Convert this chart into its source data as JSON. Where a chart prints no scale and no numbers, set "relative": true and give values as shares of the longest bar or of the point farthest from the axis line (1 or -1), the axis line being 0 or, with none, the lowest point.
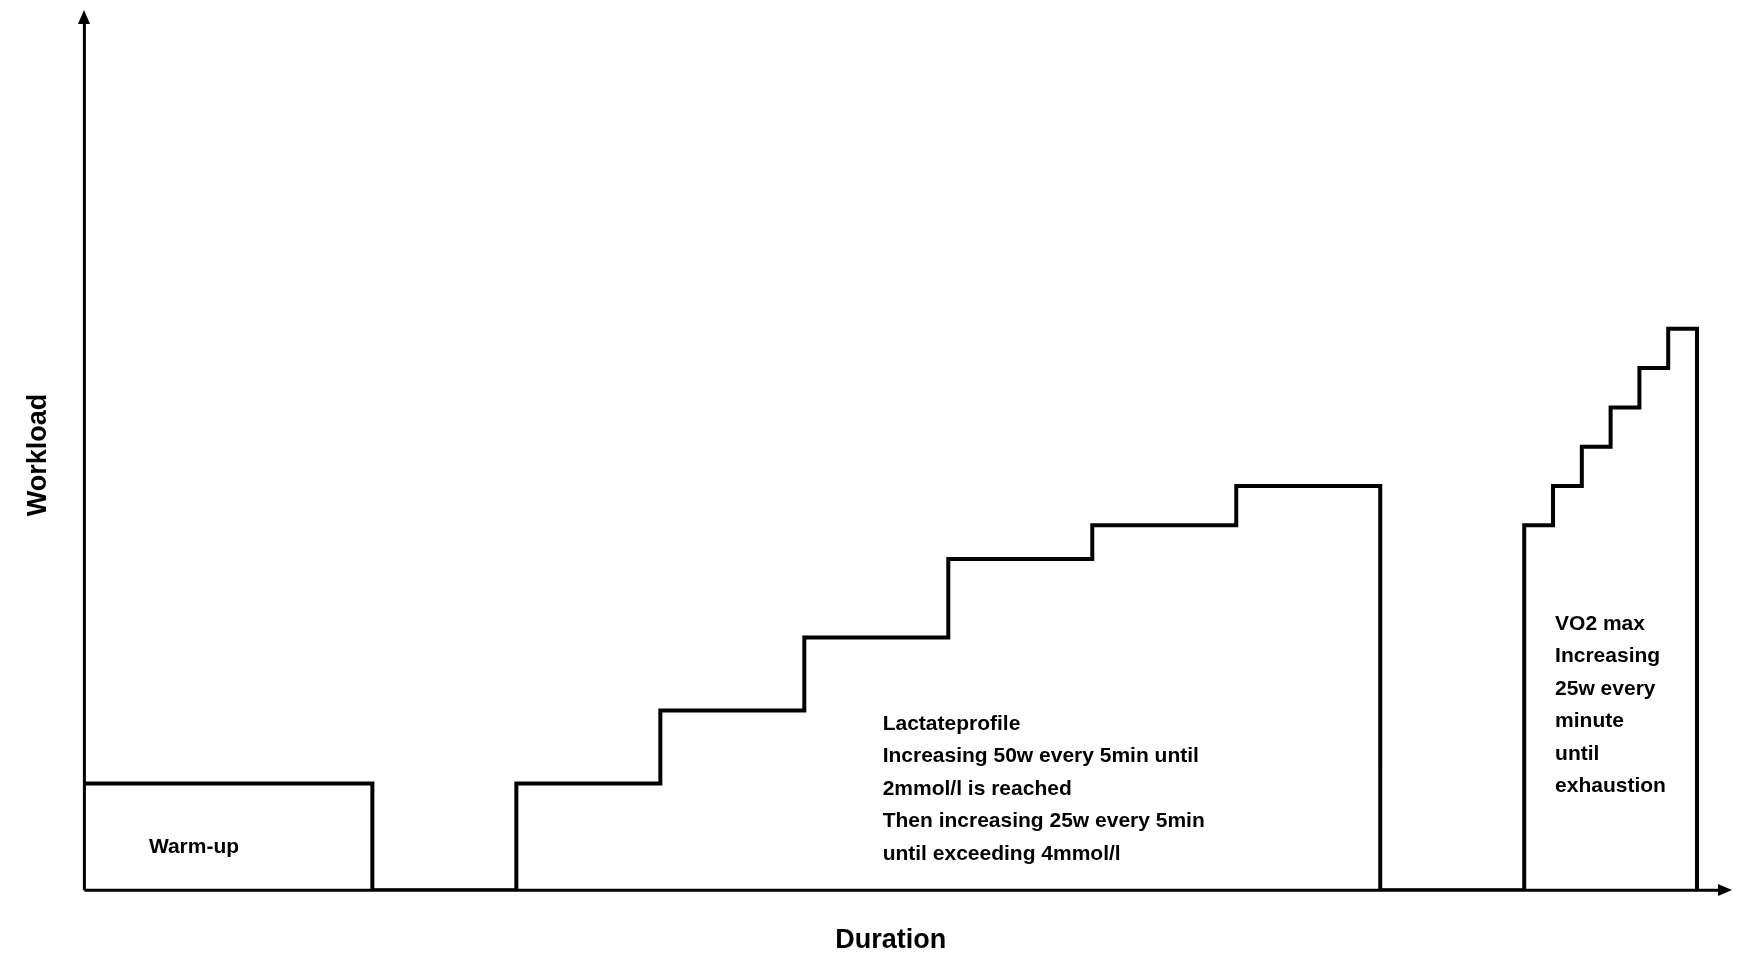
{
  "chart_data": {
    "type": "step",
    "relative": true,
    "xlabel": "Duration",
    "ylabel": "Workload",
    "grid": false,
    "legend": false,
    "marker": "none",
    "line_style": "solid",
    "categories": [
      null,
      null,
      null,
      null,
      null,
      null,
      null,
      null,
      null,
      null,
      null,
      null,
      null,
      null,
      null,
      null,
      null,
      null,
      null,
      null,
      null,
      null,
      null,
      null,
      null,
      null,
      null,
      null,
      null,
      null,
      null,
      null,
      null,
      null,
      null,
      null,
      null,
      null,
      null,
      null,
      null,
      null,
      null,
      null,
      null,
      null,
      null,
      null,
      null,
      null,
      null,
      null,
      null,
      null,
      null,
      null,
      null
    ],
    "series": [
      {
        "color": "#000000",
        "values": [
          0.19,
          0.19,
          0.19,
          0.19,
          0.19,
          0.19,
          0.19,
          0.19,
          0.19,
          0.19,
          0,
          0,
          0,
          0,
          0,
          0.19,
          0.19,
          0.19,
          0.19,
          0.19,
          0.32,
          0.32,
          0.32,
          0.32,
          0.32,
          0.45,
          0.45,
          0.45,
          0.45,
          0.45,
          0.59,
          0.59,
          0.59,
          0.59,
          0.59,
          0.65,
          0.65,
          0.65,
          0.65,
          0.65,
          0.72,
          0.72,
          0.72,
          0.72,
          0.72,
          0,
          0,
          0,
          0,
          0,
          0.65,
          0.72,
          0.79,
          0.86,
          0.93,
          1,
          0
        ]
      }
    ],
    "annotations": [
      "Warm-up",
      "Lactateprofile\nIncreasing 50w every 5min until\n2mmol/l is reached\nThen increasing 25w every 5min\nuntil exceeding 4mmol/l",
      "VO2 max\nIncreasing\n25w every\nminute\nuntil\nexhaustion"
    ]
  }
}
